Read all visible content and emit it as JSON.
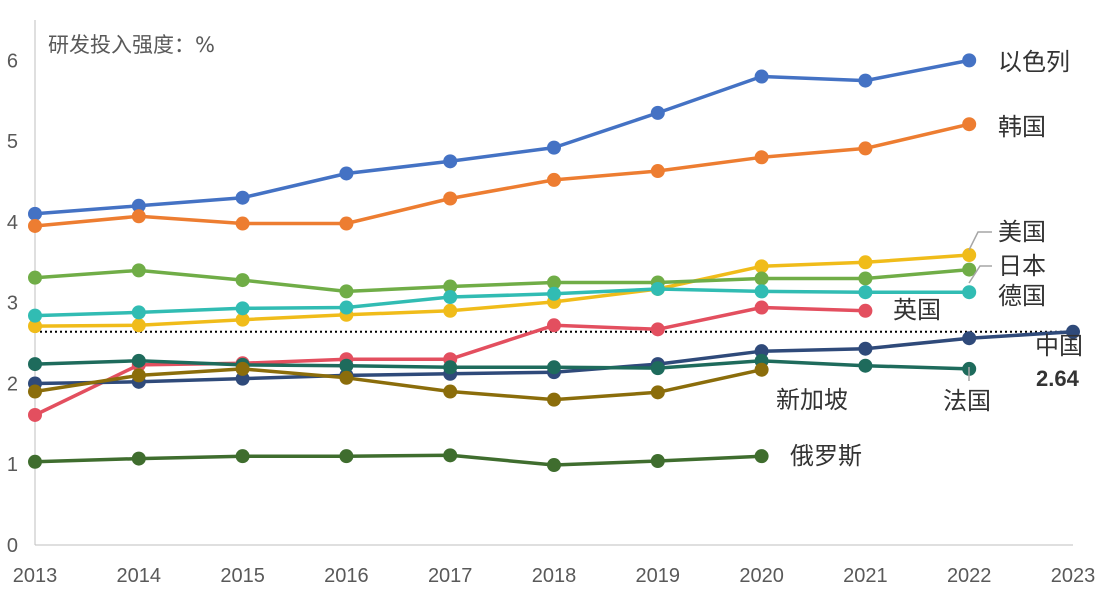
{
  "chart_data": {
    "type": "line",
    "title": "",
    "ylabel": "研发投入强度：%",
    "xlabel": "",
    "x": [
      "2013",
      "2014",
      "2015",
      "2016",
      "2017",
      "2018",
      "2019",
      "2020",
      "2021",
      "2022",
      "2023"
    ],
    "ylim": [
      0,
      6.5
    ],
    "yticks": [
      "0",
      "1",
      "2",
      "3",
      "4",
      "5",
      "6"
    ],
    "grid": false,
    "legend": "direct labels at line ends",
    "reference_line": {
      "value": 2.64,
      "style": "dotted",
      "color": "#000000"
    },
    "annotation": {
      "series": "中国",
      "x": "2023",
      "text": "2.64"
    },
    "series": [
      {
        "name": "以色列",
        "color": "#4472C4",
        "values": [
          4.1,
          4.2,
          4.3,
          4.6,
          4.75,
          4.92,
          5.35,
          5.8,
          5.75,
          6.0,
          null
        ]
      },
      {
        "name": "韩国",
        "color": "#ED7D31",
        "values": [
          3.95,
          4.07,
          3.98,
          3.98,
          4.29,
          4.52,
          4.63,
          4.8,
          4.91,
          5.21,
          null
        ]
      },
      {
        "name": "美国",
        "color": "#F0BC1A",
        "values": [
          2.71,
          2.72,
          2.79,
          2.85,
          2.9,
          3.01,
          3.17,
          3.45,
          3.5,
          3.59,
          null
        ]
      },
      {
        "name": "日本",
        "color": "#70AD47",
        "values": [
          3.31,
          3.4,
          3.28,
          3.14,
          3.2,
          3.25,
          3.25,
          3.3,
          3.3,
          3.41,
          null
        ]
      },
      {
        "name": "德国",
        "color": "#31BCB3",
        "values": [
          2.84,
          2.88,
          2.93,
          2.94,
          3.07,
          3.11,
          3.17,
          3.14,
          3.13,
          3.13,
          null
        ]
      },
      {
        "name": "英国",
        "color": "#E34F5F",
        "values": [
          1.61,
          2.23,
          2.25,
          2.3,
          2.3,
          2.72,
          2.67,
          2.94,
          2.9,
          null,
          null
        ]
      },
      {
        "name": "中国",
        "color": "#2F4A7A",
        "values": [
          2.0,
          2.02,
          2.06,
          2.1,
          2.12,
          2.14,
          2.24,
          2.4,
          2.43,
          2.56,
          2.64
        ]
      },
      {
        "name": "法国",
        "color": "#1E6B5C",
        "values": [
          2.24,
          2.28,
          2.23,
          2.22,
          2.2,
          2.2,
          2.19,
          2.28,
          2.22,
          2.18,
          null
        ]
      },
      {
        "name": "新加坡",
        "color": "#8B6D0B",
        "values": [
          1.9,
          2.1,
          2.18,
          2.07,
          1.9,
          1.8,
          1.89,
          2.17,
          null,
          null,
          null
        ]
      },
      {
        "name": "俄罗斯",
        "color": "#3F6D2E",
        "values": [
          1.03,
          1.07,
          1.1,
          1.1,
          1.11,
          0.99,
          1.04,
          1.1,
          null,
          null,
          null
        ]
      }
    ]
  }
}
